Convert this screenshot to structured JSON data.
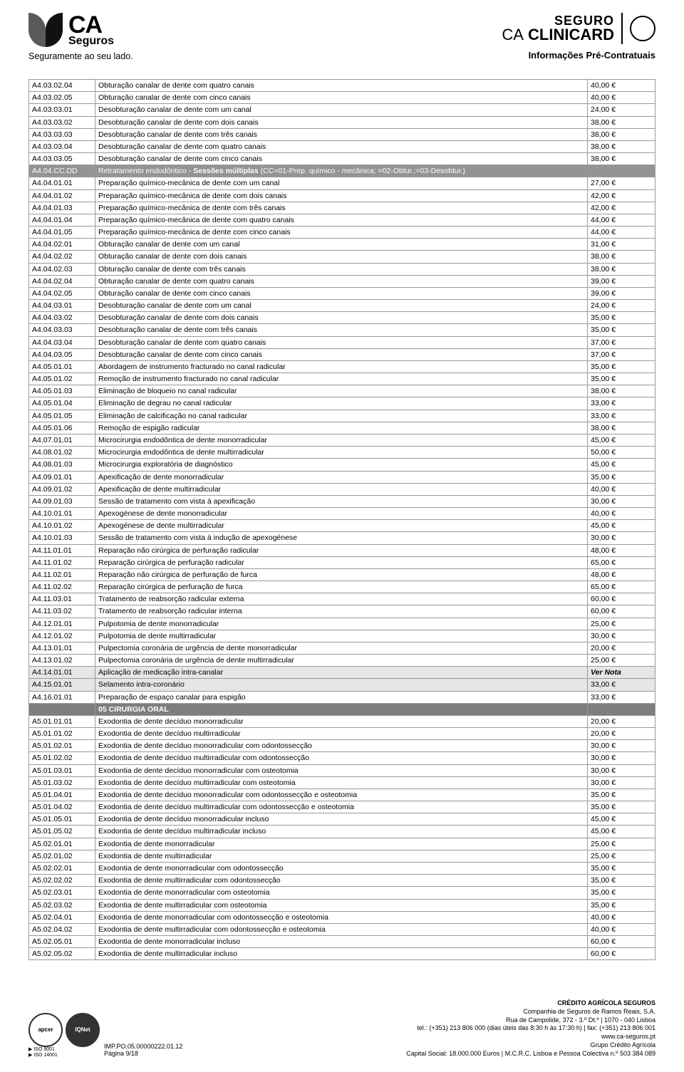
{
  "header": {
    "brand_ca": "CA",
    "brand_seguros": "Seguros",
    "tagline": "Seguramente ao seu lado.",
    "seguro": "SEGURO",
    "clinicard_ca": "CA",
    "clinicard": "CLINICARD",
    "info_line": "Informações Pré-Contratuais"
  },
  "rows": [
    {
      "code": "A4.03.02.04",
      "desc": "Obturação canalar de dente com quatro canais",
      "price": "40,00 €"
    },
    {
      "code": "A4.03.02.05",
      "desc": "Obturação canalar de dente com cinco canais",
      "price": "40,00 €"
    },
    {
      "code": "A4.03.03.01",
      "desc": "Desobturação canalar de dente com um canal",
      "price": "24,00 €"
    },
    {
      "code": "A4.03.03.02",
      "desc": "Desobturação canalar de dente com dois canais",
      "price": "38,00 €"
    },
    {
      "code": "A4.03.03.03",
      "desc": "Desobturação canalar de dente com três canais",
      "price": "38,00 €"
    },
    {
      "code": "A4.03.03.04",
      "desc": "Desobturação canalar de dente com quatro canais",
      "price": "38,00 €"
    },
    {
      "code": "A4.03.03.05",
      "desc": "Desobturação canalar de dente com cinco canais",
      "price": "38,00 €"
    },
    {
      "type": "gray",
      "code": "A4.04.CC.DD",
      "desc_plain": "Retratamento endodôntico - ",
      "desc_bold": "Sessões múltiplas",
      "desc_tail": " (CC=01-Prep. químico - mecânica; =02-Obtur.;=03-Desobtur.)",
      "price": ""
    },
    {
      "code": "A4.04.01.01",
      "desc": "Preparação químico-mecânica de dente com um canal",
      "price": "27,00 €"
    },
    {
      "code": "A4.04.01.02",
      "desc": "Preparação químico-mecânica de dente com dois canais",
      "price": "42,00 €"
    },
    {
      "code": "A4.04.01.03",
      "desc": "Preparação químico-mecânica de dente com três canais",
      "price": "42,00 €"
    },
    {
      "code": "A4.04.01.04",
      "desc": "Preparação químico-mecânica de dente com quatro canais",
      "price": "44,00 €"
    },
    {
      "code": "A4.04.01.05",
      "desc": "Preparação químico-mecânica de dente com cinco canais",
      "price": "44,00 €"
    },
    {
      "code": "A4.04.02.01",
      "desc": "Obturação canalar de dente com um canal",
      "price": "31,00 €"
    },
    {
      "code": "A4.04.02.02",
      "desc": "Obturação canalar de dente com dois canais",
      "price": "38,00 €"
    },
    {
      "code": "A4.04.02.03",
      "desc": "Obturação canalar de dente com três canais",
      "price": "38,00 €"
    },
    {
      "code": "A4.04.02.04",
      "desc": "Obturação canalar de dente com quatro canais",
      "price": "39,00 €"
    },
    {
      "code": "A4.04.02.05",
      "desc": "Obturação canalar de dente com cinco canais",
      "price": "39,00 €"
    },
    {
      "code": "A4.04.03.01",
      "desc": "Desobturação canalar de dente com um canal",
      "price": "24,00 €"
    },
    {
      "code": "A4.04.03.02",
      "desc": "Desobturação canalar de dente com dois canais",
      "price": "35,00 €"
    },
    {
      "code": "A4.04.03.03",
      "desc": "Desobturação canalar de dente com três canais",
      "price": "35,00 €"
    },
    {
      "code": "A4.04.03.04",
      "desc": "Desobturação canalar de dente com quatro canais",
      "price": "37,00 €"
    },
    {
      "code": "A4.04.03.05",
      "desc": "Desobturação canalar de dente com cinco canais",
      "price": "37,00 €"
    },
    {
      "code": "A4.05.01.01",
      "desc": "Abordagem de instrumento fracturado no canal radicular",
      "price": "35,00 €"
    },
    {
      "code": "A4.05.01.02",
      "desc": "Remoção de instrumento fracturado no canal radicular",
      "price": "35,00 €"
    },
    {
      "code": "A4.05.01.03",
      "desc": "Eliminação de bloqueio no canal radicular",
      "price": "38,00 €"
    },
    {
      "code": "A4.05.01.04",
      "desc": "Eliminação de degrau no canal radicular",
      "price": "33,00 €"
    },
    {
      "code": "A4.05.01.05",
      "desc": "Eliminação de calcificação no canal radicular",
      "price": "33,00 €"
    },
    {
      "code": "A4.05.01.06",
      "desc": "Remoção de espigão radicular",
      "price": "38,00 €"
    },
    {
      "code": "A4.07.01.01",
      "desc": "Microcirurgia endodôntica de dente monorradicular",
      "price": "45,00 €"
    },
    {
      "code": "A4.08.01.02",
      "desc": "Microcirurgia endodôntica de dente multirradicular",
      "price": "50,00 €"
    },
    {
      "code": "A4.08.01.03",
      "desc": "Microcirurgia exploratória de diagnóstico",
      "price": "45,00 €"
    },
    {
      "code": "A4.09.01.01",
      "desc": "Apexificação de dente monorradicular",
      "price": "35,00 €"
    },
    {
      "code": "A4.09.01.02",
      "desc": "Apexificação de dente multirradicular",
      "price": "40,00 €"
    },
    {
      "code": "A4.09.01.03",
      "desc": "Sessão de tratamento com vista à apexificação",
      "price": "30,00 €"
    },
    {
      "code": "A4.10.01.01",
      "desc": "Apexogénese de dente monorradicular",
      "price": "40,00 €"
    },
    {
      "code": "A4.10.01.02",
      "desc": "Apexogénese de dente multirradicular",
      "price": "45,00 €"
    },
    {
      "code": "A4.10.01.03",
      "desc": "Sessão de tratamento com vista à indução de apexogénese",
      "price": "30,00 €"
    },
    {
      "code": "A4.11.01.01",
      "desc": "Reparação não cirúrgica de perfuração radicular",
      "price": "48,00 €"
    },
    {
      "code": "A4.11.01.02",
      "desc": "Reparação cirúrgica de perfuração radicular",
      "price": "65,00 €"
    },
    {
      "code": "A4.11.02.01",
      "desc": "Reparação não cirúrgica de perfuração de furca",
      "price": "48,00 €"
    },
    {
      "code": "A4.11.02.02",
      "desc": "Reparação cirúrgica de perfuração de furca",
      "price": "65,00 €"
    },
    {
      "code": "A4.11.03.01",
      "desc": "Tratamento de reabsorção radicular externa",
      "price": "60,00 €"
    },
    {
      "code": "A4.11.03.02",
      "desc": "Tratamento de reabsorção radicular interna",
      "price": "60,00 €"
    },
    {
      "code": "A4.12.01.01",
      "desc": "Pulpotomia de dente monorradicular",
      "price": "25,00 €"
    },
    {
      "code": "A4.12.01.02",
      "desc": "Pulpotomia de dente multirradicular",
      "price": "30,00 €"
    },
    {
      "code": "A4.13.01.01",
      "desc": "Pulpectomia coronária de urgência de dente monorradicular",
      "price": "20,00 €"
    },
    {
      "code": "A4.13.01.02",
      "desc": "Pulpectomia coronária de urgência de dente multirradicular",
      "price": "25,00 €"
    },
    {
      "type": "light",
      "code": "A4.14.01.01",
      "desc": "Aplicação de medicação intra-canalar",
      "price_html": "<b><i>Ver Nota</i></b>"
    },
    {
      "type": "light",
      "code": "A4.15.01.01",
      "desc": "Selamento intra-coronário",
      "price": "33,00 €"
    },
    {
      "code": "A4.16.01.01",
      "desc": "Preparação de espaço canalar para espigão",
      "price": "33,00 €"
    },
    {
      "type": "mid",
      "code": "",
      "desc": "05 CIRURGIA ORAL",
      "price": ""
    },
    {
      "code": "A5.01.01.01",
      "desc": "Exodontia de dente decíduo monorradicular",
      "price": "20,00 €"
    },
    {
      "code": "A5.01.01.02",
      "desc": "Exodontia de dente decíduo multirradicular",
      "price": "20,00 €"
    },
    {
      "code": "A5.01.02.01",
      "desc": "Exodontia de dente decíduo monorradicular com odontossecção",
      "price": "30,00 €"
    },
    {
      "code": "A5.01.02.02",
      "desc": "Exodontia de dente decíduo multirradicular com odontossecção",
      "price": "30,00 €"
    },
    {
      "code": "A5.01.03.01",
      "desc": "Exodontia de dente decíduo monorradicular com osteotomia",
      "price": "30,00 €"
    },
    {
      "code": "A5.01.03.02",
      "desc": "Exodontia de dente decíduo multirradicular com osteotomia",
      "price": "30,00 €"
    },
    {
      "code": "A5.01.04.01",
      "desc": "Exodontia de dente decíduo monorradicular com odontossecção e osteotomia",
      "price": "35,00 €"
    },
    {
      "code": "A5.01.04.02",
      "desc": "Exodontia de dente decíduo multirradicular com odontossecção e osteotomia",
      "price": "35,00 €"
    },
    {
      "code": "A5.01.05.01",
      "desc": "Exodontia de dente decíduo monorradicular incluso",
      "price": "45,00 €"
    },
    {
      "code": "A5.01.05.02",
      "desc": "Exodontia de dente decíduo multirradicular incluso",
      "price": "45,00 €"
    },
    {
      "code": "A5.02.01.01",
      "desc": "Exodontia de dente monorradicular",
      "price": "25,00 €"
    },
    {
      "code": "A5.02.01.02",
      "desc": "Exodontia de dente multirradicular",
      "price": "25,00 €"
    },
    {
      "code": "A5.02.02.01",
      "desc": "Exodontia de dente monorradicular com odontossecção",
      "price": "35,00 €"
    },
    {
      "code": "A5.02.02.02",
      "desc": "Exodontia de dente multirradicular com odontossecção",
      "price": "35,00 €"
    },
    {
      "code": "A5.02.03.01",
      "desc": "Exodontia de dente monorradicular com osteotomia",
      "price": "35,00 €"
    },
    {
      "code": "A5.02.03.02",
      "desc": "Exodontia de dente multirradicular com osteotomia",
      "price": "35,00 €"
    },
    {
      "code": "A5.02.04.01",
      "desc": "Exodontia de dente monorradicular com odontossecção e osteotomia",
      "price": "40,00 €"
    },
    {
      "code": "A5.02.04.02",
      "desc": "Exodontia de dente multirradicular com odontossecção e osteotomia",
      "price": "40,00 €"
    },
    {
      "code": "A5.02.05.01",
      "desc": "Exodontia de dente monorradicular incluso",
      "price": "60,00 €"
    },
    {
      "code": "A5.02.05.02",
      "desc": "Exodontia de dente multirradicular incluso",
      "price": "60,00 €"
    }
  ],
  "footer": {
    "cert1": "apcer",
    "cert2": "IQNet",
    "iso1": "▶ ISO 9001",
    "iso2": "▶ ISO 14001",
    "imp": "IMP.PO.05.00000222.01.12",
    "pagina": "Página 9/18",
    "r1": "CRÉDITO AGRÍCOLA SEGUROS",
    "r2": "Companhia de Seguros de Ramos Reais, S.A.",
    "r3": "Rua de Campolide, 372 - 3.º Dt.º | 1070 - 040 Lisboa",
    "r4": "tel.: (+351) 213 806 000 (dias úteis das 8:30 h às 17:30 h) | fax: (+351) 213 806 001",
    "r5": "www.ca-seguros.pt",
    "r6": "Grupo Crédito Agrícola",
    "r7": "Capital Social: 18.000.000 Euros | M.C.R.C. Lisboa e Pessoa Colectiva n.º 503 384 089"
  }
}
